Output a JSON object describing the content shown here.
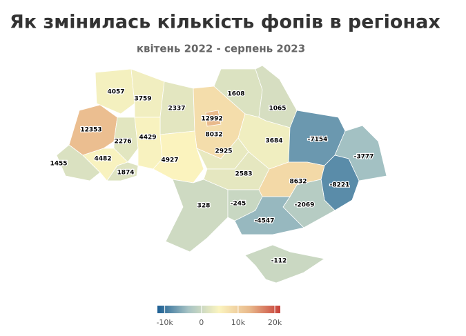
{
  "chart_data": {
    "type": "choropleth",
    "title": "Як змінилась кількість фопів в регіонах",
    "subtitle": "квітень 2022 - серпень 2023",
    "values": [
      4057,
      3759,
      2337,
      8032,
      12992,
      1608,
      1065,
      12353,
      2276,
      4429,
      1455,
      4482,
      1874,
      4927,
      2925,
      3684,
      -7154,
      -3777,
      -8221,
      2583,
      8632,
      328,
      -245,
      -2069,
      -4547,
      -112
    ],
    "colorlim": [
      -12000,
      21500
    ],
    "colors": [
      "#1b5e93",
      "#a6c3c4",
      "#fbf4bf",
      "#e9b98b",
      "#c8413a"
    ],
    "colorticks": [
      {
        "value": -10000,
        "label": "-10k"
      },
      0,
      {
        "value": 10000,
        "label": "10k"
      },
      {
        "value": 20000,
        "label": "20k"
      }
    ]
  }
}
